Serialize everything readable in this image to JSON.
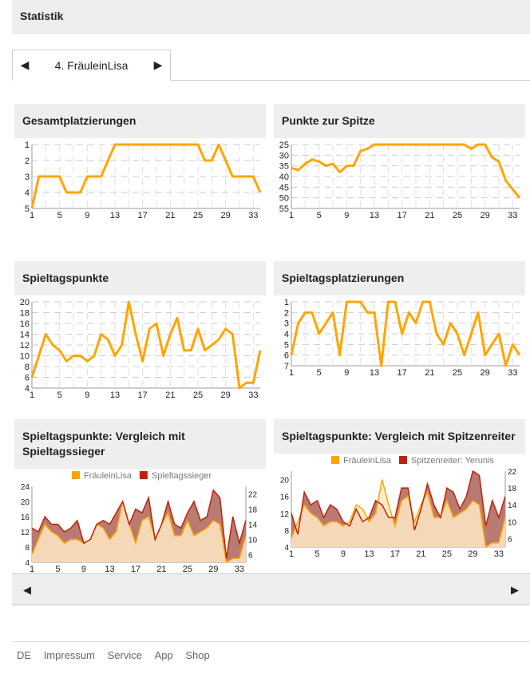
{
  "header": {
    "title": "Statistik"
  },
  "tab": {
    "label": "4. FräuleinLisa",
    "prev_icon": "triangle-left-icon",
    "next_icon": "triangle-right-icon"
  },
  "colors": {
    "primary": "#ffa500",
    "secondary": "#c0210a",
    "fill_primary": "#ffe9c4",
    "fill_secondary": "#b87b72"
  },
  "panels": [
    {
      "title": "Gesamtplatzierungen"
    },
    {
      "title": "Punkte zur Spitze"
    },
    {
      "title": "Spieltagspunkte"
    },
    {
      "title": "Spieltagsplatzierungen"
    },
    {
      "title": "Spieltagspunkte: Vergleich mit Spieltagssieger"
    },
    {
      "title": "Spieltagspunkte: Vergleich mit Spitzenreiter"
    }
  ],
  "chart_data": [
    {
      "type": "line",
      "inverted": true,
      "ylim": [
        1,
        5
      ],
      "yticks": [
        1,
        2,
        3,
        4,
        5
      ],
      "xticks": [
        1,
        5,
        9,
        13,
        17,
        21,
        25,
        29,
        33
      ],
      "grid": true,
      "x": [
        1,
        2,
        3,
        4,
        5,
        6,
        7,
        8,
        9,
        10,
        11,
        12,
        13,
        14,
        15,
        16,
        17,
        18,
        19,
        20,
        21,
        22,
        23,
        24,
        25,
        26,
        27,
        28,
        29,
        30,
        31,
        32,
        33,
        34
      ],
      "series": [
        {
          "values": [
            5,
            3,
            3,
            3,
            3,
            4,
            4,
            4,
            3,
            3,
            3,
            2,
            1,
            1,
            1,
            1,
            1,
            1,
            1,
            1,
            1,
            1,
            1,
            1,
            1,
            2,
            2,
            1,
            2,
            3,
            3,
            3,
            3,
            4
          ]
        }
      ]
    },
    {
      "type": "line",
      "inverted": true,
      "ylim": [
        25,
        55
      ],
      "yticks": [
        25,
        30,
        35,
        40,
        45,
        50,
        55
      ],
      "xticks": [
        1,
        5,
        9,
        13,
        17,
        21,
        25,
        29,
        33
      ],
      "grid": true,
      "x": [
        1,
        2,
        3,
        4,
        5,
        6,
        7,
        8,
        9,
        10,
        11,
        12,
        13,
        14,
        15,
        16,
        17,
        18,
        19,
        20,
        21,
        22,
        23,
        24,
        25,
        26,
        27,
        28,
        29,
        30,
        31,
        32,
        33,
        34
      ],
      "series": [
        {
          "values": [
            36,
            37,
            34,
            32,
            33,
            35,
            34,
            38,
            35,
            35,
            28,
            27,
            25,
            25,
            25,
            25,
            25,
            25,
            25,
            25,
            25,
            25,
            25,
            25,
            25,
            25,
            27,
            25,
            25,
            31,
            33,
            42,
            46,
            50
          ]
        }
      ]
    },
    {
      "type": "line",
      "inverted": false,
      "ylim": [
        4,
        20
      ],
      "yticks": [
        4,
        6,
        8,
        10,
        12,
        14,
        16,
        18,
        20
      ],
      "xticks": [
        1,
        5,
        9,
        13,
        17,
        21,
        25,
        29,
        33
      ],
      "grid": true,
      "x": [
        1,
        2,
        3,
        4,
        5,
        6,
        7,
        8,
        9,
        10,
        11,
        12,
        13,
        14,
        15,
        16,
        17,
        18,
        19,
        20,
        21,
        22,
        23,
        24,
        25,
        26,
        27,
        28,
        29,
        30,
        31,
        32,
        33,
        34
      ],
      "series": [
        {
          "values": [
            6,
            10,
            14,
            12,
            11,
            9,
            10,
            10,
            9,
            10,
            14,
            13,
            10,
            12,
            20,
            14,
            9,
            15,
            16,
            10,
            14,
            17,
            11,
            11,
            15,
            11,
            12,
            13,
            15,
            14,
            4,
            5,
            5,
            11
          ]
        }
      ]
    },
    {
      "type": "line",
      "inverted": true,
      "ylim": [
        1,
        7
      ],
      "yticks": [
        1,
        2,
        3,
        4,
        5,
        6,
        7
      ],
      "xticks": [
        1,
        5,
        9,
        13,
        17,
        21,
        25,
        29,
        33
      ],
      "grid": true,
      "x": [
        1,
        2,
        3,
        4,
        5,
        6,
        7,
        8,
        9,
        10,
        11,
        12,
        13,
        14,
        15,
        16,
        17,
        18,
        19,
        20,
        21,
        22,
        23,
        24,
        25,
        26,
        27,
        28,
        29,
        30,
        31,
        32,
        33,
        34
      ],
      "series": [
        {
          "values": [
            6,
            3,
            2,
            2,
            4,
            3,
            2,
            6,
            1,
            1,
            1,
            2,
            2,
            7,
            1,
            1,
            4,
            2,
            3,
            1,
            1,
            4,
            5,
            3,
            4,
            6,
            4,
            2,
            6,
            5,
            4,
            7,
            5,
            6
          ]
        }
      ]
    },
    {
      "type": "area",
      "inverted": false,
      "ylim": [
        4,
        24
      ],
      "yticks": [
        4,
        6,
        8,
        10,
        12,
        14,
        16,
        18,
        20,
        22,
        24
      ],
      "xticks": [
        1,
        5,
        9,
        13,
        17,
        21,
        25,
        29,
        33
      ],
      "grid": false,
      "legend": "top",
      "x": [
        1,
        2,
        3,
        4,
        5,
        6,
        7,
        8,
        9,
        10,
        11,
        12,
        13,
        14,
        15,
        16,
        17,
        18,
        19,
        20,
        21,
        22,
        23,
        24,
        25,
        26,
        27,
        28,
        29,
        30,
        31,
        32,
        33,
        34
      ],
      "series": [
        {
          "name": "FräuleinLisa",
          "values": [
            6,
            10,
            14,
            12,
            11,
            9,
            10,
            10,
            9,
            10,
            14,
            13,
            10,
            12,
            20,
            14,
            9,
            15,
            16,
            10,
            14,
            17,
            11,
            11,
            15,
            11,
            12,
            13,
            15,
            14,
            4,
            5,
            5,
            11
          ]
        },
        {
          "name": "Spieltagssieger",
          "values": [
            13,
            12,
            16,
            14,
            14,
            12,
            13,
            15,
            9,
            10,
            14,
            15,
            14,
            17,
            20,
            14,
            18,
            17,
            21,
            10,
            14,
            20,
            14,
            13,
            17,
            20,
            15,
            16,
            23,
            21,
            5,
            16,
            9,
            15
          ]
        }
      ]
    },
    {
      "type": "area",
      "inverted": false,
      "ylim": [
        4,
        22
      ],
      "yticks": [
        4,
        6,
        8,
        10,
        12,
        14,
        16,
        18,
        20,
        22
      ],
      "xticks": [
        1,
        5,
        9,
        13,
        17,
        21,
        25,
        29,
        33
      ],
      "grid": false,
      "legend": "top",
      "x": [
        1,
        2,
        3,
        4,
        5,
        6,
        7,
        8,
        9,
        10,
        11,
        12,
        13,
        14,
        15,
        16,
        17,
        18,
        19,
        20,
        21,
        22,
        23,
        24,
        25,
        26,
        27,
        28,
        29,
        30,
        31,
        32,
        33,
        34
      ],
      "series": [
        {
          "name": "FräuleinLisa",
          "values": [
            6,
            10,
            14,
            12,
            11,
            9,
            10,
            10,
            9,
            10,
            14,
            13,
            10,
            12,
            20,
            14,
            9,
            15,
            16,
            10,
            14,
            17,
            11,
            11,
            15,
            11,
            12,
            13,
            15,
            14,
            4,
            5,
            5,
            11
          ]
        },
        {
          "name": "Spitzenreiter: Yerunis",
          "values": [
            12,
            7,
            17,
            14,
            15,
            11,
            14,
            13,
            10,
            9,
            13,
            10,
            11,
            15,
            14,
            11,
            11,
            18,
            18,
            8,
            13,
            19,
            14,
            11,
            18,
            17,
            13,
            16,
            22,
            21,
            9,
            15,
            11,
            16
          ]
        }
      ]
    }
  ],
  "nav": {
    "prev_icon": "triangle-left-icon",
    "next_icon": "triangle-right-icon"
  },
  "footer": {
    "links": [
      "DE",
      "Impressum",
      "Service",
      "App",
      "Shop"
    ]
  }
}
